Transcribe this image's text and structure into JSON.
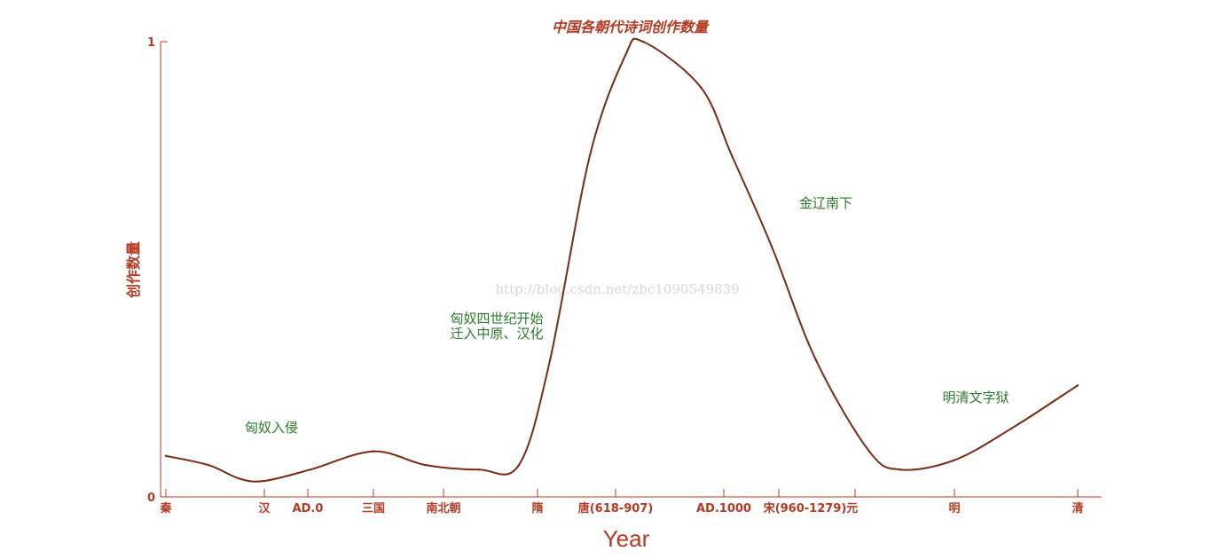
{
  "chart_data": {
    "type": "line",
    "title": "中国各朝代诗词创作数量",
    "xlabel": "Year",
    "ylabel": "创作数量",
    "ylim": [
      0,
      1
    ],
    "y_ticks": [
      "0",
      "1"
    ],
    "x_ticks": [
      "秦",
      "汉",
      "AD.0",
      "三国",
      "南北朝",
      "隋",
      "唐(618-907)",
      "AD.1000",
      "宋(960-1279)元",
      "明",
      "清"
    ],
    "series": [
      {
        "values": [
          0.09,
          0.07,
          0.04,
          0.035,
          0.06,
          0.1,
          0.07,
          0.06,
          0.07,
          0.3,
          0.75,
          0.97,
          1.0,
          0.9,
          0.75,
          0.55,
          0.3,
          0.1,
          0.06,
          0.08,
          0.15,
          0.245
        ]
      }
    ],
    "annotations": [
      "匈奴入侵",
      "匈奴四世纪开始",
      "迁入中原、汉化",
      "金辽南下",
      "明清文字狱"
    ],
    "watermark": "http://blog.csdn.net/zbc1090549839",
    "colors": {
      "axis": "#b53a22",
      "line": "#7a2a14",
      "annotation": "#2a7a2a",
      "title": "#b53a22",
      "watermark": "#d8d8d8"
    }
  }
}
